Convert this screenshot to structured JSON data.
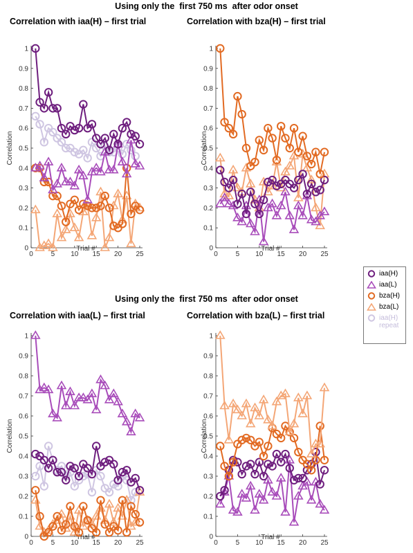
{
  "suptitles": [
    "Using only the  first 750 ms  after odor onset",
    "Using only the  first 750 ms  after odor onset"
  ],
  "colors": {
    "iaa_H": "#6e1e7e",
    "iaa_L": "#a84cba",
    "bza_H": "#e26a22",
    "bza_L": "#f4a676",
    "iaa_H_repeat": "#cfc6e2"
  },
  "legend": {
    "items": [
      {
        "label": "iaa(H)",
        "marker": "circle",
        "color": "#6e1e7e"
      },
      {
        "label": "iaa(L)",
        "marker": "triangle",
        "color": "#a84cba"
      },
      {
        "label": "bza(H)",
        "marker": "circle",
        "color": "#e26a22"
      },
      {
        "label": "bza(L)",
        "marker": "triangle",
        "color": "#f4a676"
      },
      {
        "label": "iaa(H)\nrepeat",
        "marker": "circle",
        "color": "#cfc6e2"
      }
    ]
  },
  "chart_data": [
    {
      "type": "line",
      "title": "Correlation with iaa(H) – first trial",
      "xlabel": "Trial #",
      "ylabel": "Correlation",
      "xlim": [
        0,
        25
      ],
      "ylim": [
        0,
        1
      ],
      "xticks": [
        "0",
        "5",
        "10",
        "15",
        "20",
        "25"
      ],
      "yticks": [
        "0",
        "0.1",
        "0.2",
        "0.3",
        "0.4",
        "0.5",
        "0.6",
        "0.7",
        "0.8",
        "0.9",
        "1"
      ],
      "series": [
        {
          "name": "iaa(H) repeat",
          "values": [
            0.66,
            0.62,
            0.53,
            0.6,
            0.58,
            0.55,
            0.53,
            0.5,
            0.5,
            0.48,
            0.47,
            0.49,
            0.45,
            0.53,
            0.5,
            0.46,
            0.51,
            0.48,
            0.48,
            0.5,
            0.47,
            0.52,
            0.49,
            0.46
          ]
        },
        {
          "name": "bza(L)",
          "values": [
            0.19,
            0.0,
            0.01,
            0.02,
            0.0,
            0.17,
            0.05,
            0.09,
            0.17,
            0.1,
            0.05,
            0.18,
            0.21,
            0.06,
            0.15,
            0.28,
            0.0,
            0.05,
            0.21,
            0.27,
            0.14,
            0.26,
            0.02,
            0.22,
            0.2
          ]
        },
        {
          "name": "bza(H)",
          "values": [
            0.4,
            0.4,
            0.33,
            0.33,
            0.26,
            0.26,
            0.21,
            0.13,
            0.22,
            0.24,
            0.19,
            0.22,
            0.21,
            0.2,
            0.2,
            0.21,
            0.26,
            0.2,
            0.11,
            0.1,
            0.12,
            0.4,
            0.17,
            0.21,
            0.19
          ]
        },
        {
          "name": "iaa(L)",
          "values": [
            0.4,
            0.41,
            0.35,
            0.43,
            0.29,
            0.32,
            0.4,
            0.33,
            0.33,
            0.31,
            0.39,
            0.36,
            0.24,
            0.38,
            0.4,
            0.38,
            0.48,
            0.39,
            0.39,
            0.52,
            0.43,
            0.37,
            0.54,
            0.42,
            0.41
          ]
        },
        {
          "name": "iaa(H)",
          "values": [
            1.0,
            0.73,
            0.7,
            0.78,
            0.7,
            0.7,
            0.6,
            0.57,
            0.61,
            0.59,
            0.6,
            0.72,
            0.6,
            0.62,
            0.55,
            0.52,
            0.55,
            0.49,
            0.57,
            0.52,
            0.6,
            0.63,
            0.57,
            0.56,
            0.52
          ]
        }
      ]
    },
    {
      "type": "line",
      "title": "Correlation with bza(H) – first trial",
      "xlabel": "Trial #",
      "ylabel": "Correlation",
      "xlim": [
        0,
        25
      ],
      "ylim": [
        0,
        1
      ],
      "xticks": [
        "0",
        "5",
        "10",
        "15",
        "20",
        "25"
      ],
      "yticks": [
        "0",
        "0.1",
        "0.2",
        "0.3",
        "0.4",
        "0.5",
        "0.6",
        "0.7",
        "0.8",
        "0.9",
        "1"
      ],
      "series": [
        {
          "name": "bza(L)",
          "values": [
            0.45,
            0.27,
            0.26,
            0.39,
            0.3,
            0.28,
            0.4,
            0.32,
            0.24,
            0.2,
            0.33,
            0.28,
            0.31,
            0.43,
            0.3,
            0.38,
            0.41,
            0.46,
            0.25,
            0.47,
            0.4,
            0.34,
            0.2,
            0.11,
            0.37
          ]
        },
        {
          "name": "iaa(L)",
          "values": [
            0.22,
            0.25,
            0.22,
            0.21,
            0.15,
            0.13,
            0.21,
            0.12,
            0.08,
            0.24,
            0.03,
            0.2,
            0.22,
            0.16,
            0.21,
            0.28,
            0.16,
            0.09,
            0.21,
            0.16,
            0.26,
            0.14,
            0.13,
            0.16,
            0.18
          ]
        },
        {
          "name": "iaa(H)",
          "values": [
            0.39,
            0.33,
            0.3,
            0.34,
            0.22,
            0.27,
            0.17,
            0.28,
            0.22,
            0.17,
            0.24,
            0.33,
            0.34,
            0.31,
            0.32,
            0.34,
            0.32,
            0.3,
            0.34,
            0.37,
            0.27,
            0.32,
            0.28,
            0.29,
            0.34
          ]
        },
        {
          "name": "bza(H)",
          "values": [
            1.0,
            0.63,
            0.6,
            0.57,
            0.76,
            0.67,
            0.5,
            0.41,
            0.43,
            0.54,
            0.49,
            0.6,
            0.55,
            0.44,
            0.61,
            0.55,
            0.5,
            0.6,
            0.48,
            0.56,
            0.46,
            0.42,
            0.48,
            0.37,
            0.48
          ]
        }
      ]
    },
    {
      "type": "line",
      "title": "Correlation with iaa(L) – first trial",
      "xlabel": "Trial #",
      "ylabel": "Correlation",
      "xlim": [
        0,
        25
      ],
      "ylim": [
        0,
        1
      ],
      "xticks": [
        "0",
        "5",
        "10",
        "15",
        "20",
        "25"
      ],
      "yticks": [
        "0",
        "0.1",
        "0.2",
        "0.3",
        "0.4",
        "0.5",
        "0.6",
        "0.7",
        "0.8",
        "0.9",
        "1"
      ],
      "series": [
        {
          "name": "iaa(H) repeat",
          "values": [
            0.3,
            0.35,
            0.25,
            0.45,
            0.38,
            0.33,
            0.35,
            0.3,
            0.32,
            0.25,
            0.28,
            0.3,
            0.31,
            0.22,
            0.33,
            0.3,
            0.24,
            0.22,
            0.26,
            0.25,
            0.3,
            0.28,
            0.18,
            0.22
          ]
        },
        {
          "name": "bza(L)",
          "values": [
            0.18,
            0.05,
            0.02,
            0.03,
            0.06,
            0.08,
            0.11,
            0.04,
            0.1,
            0.02,
            0.13,
            0.05,
            0.08,
            0.06,
            0.1,
            0.14,
            0.08,
            0.16,
            0.07,
            0.14,
            0.1,
            0.18,
            0.05,
            0.07,
            0.22
          ]
        },
        {
          "name": "bza(H)",
          "values": [
            0.23,
            0.1,
            0.0,
            0.02,
            0.05,
            0.1,
            0.03,
            0.06,
            0.15,
            0.05,
            0.02,
            0.15,
            0.08,
            0.04,
            0.02,
            0.18,
            0.06,
            0.02,
            0.05,
            0.03,
            0.18,
            0.02,
            0.15,
            0.11,
            0.07
          ]
        },
        {
          "name": "iaa(H)",
          "values": [
            0.41,
            0.4,
            0.38,
            0.34,
            0.38,
            0.32,
            0.32,
            0.28,
            0.35,
            0.34,
            0.3,
            0.36,
            0.34,
            0.31,
            0.45,
            0.35,
            0.37,
            0.38,
            0.36,
            0.28,
            0.32,
            0.33,
            0.27,
            0.29,
            0.23
          ]
        },
        {
          "name": "iaa(L)",
          "values": [
            1.0,
            0.73,
            0.74,
            0.73,
            0.61,
            0.59,
            0.75,
            0.65,
            0.72,
            0.65,
            0.69,
            0.69,
            0.68,
            0.71,
            0.63,
            0.78,
            0.75,
            0.68,
            0.71,
            0.67,
            0.61,
            0.57,
            0.52,
            0.61,
            0.59
          ]
        }
      ]
    },
    {
      "type": "line",
      "title": "Correlation with bza(L) – first trial",
      "xlabel": "Trial #",
      "ylabel": "Correlation",
      "xlim": [
        0,
        25
      ],
      "ylim": [
        0,
        1
      ],
      "xticks": [
        "0",
        "5",
        "10",
        "15",
        "20",
        "25"
      ],
      "yticks": [
        "0",
        "0.1",
        "0.2",
        "0.3",
        "0.4",
        "0.5",
        "0.6",
        "0.7",
        "0.8",
        "0.9",
        "1"
      ],
      "series": [
        {
          "name": "iaa(L)",
          "values": [
            0.16,
            0.22,
            0.3,
            0.13,
            0.12,
            0.21,
            0.19,
            0.25,
            0.13,
            0.21,
            0.18,
            0.28,
            0.22,
            0.2,
            0.29,
            0.12,
            0.38,
            0.07,
            0.2,
            0.25,
            0.27,
            0.18,
            0.27,
            0.16,
            0.13
          ]
        },
        {
          "name": "iaa(H)",
          "values": [
            0.2,
            0.23,
            0.33,
            0.38,
            0.37,
            0.31,
            0.35,
            0.36,
            0.31,
            0.37,
            0.3,
            0.36,
            0.35,
            0.41,
            0.37,
            0.41,
            0.34,
            0.28,
            0.29,
            0.29,
            0.33,
            0.36,
            0.42,
            0.26,
            0.33
          ]
        },
        {
          "name": "bza(H)",
          "values": [
            0.45,
            0.35,
            0.3,
            0.37,
            0.46,
            0.48,
            0.49,
            0.48,
            0.45,
            0.47,
            0.4,
            0.45,
            0.54,
            0.51,
            0.49,
            0.55,
            0.52,
            0.49,
            0.42,
            0.38,
            0.36,
            0.33,
            0.38,
            0.55,
            0.38
          ]
        },
        {
          "name": "bza(L)",
          "values": [
            1.0,
            0.65,
            0.48,
            0.66,
            0.63,
            0.6,
            0.66,
            0.56,
            0.64,
            0.6,
            0.68,
            0.58,
            0.55,
            0.67,
            0.7,
            0.71,
            0.52,
            0.56,
            0.69,
            0.61,
            0.7,
            0.41,
            0.46,
            0.46,
            0.74
          ]
        }
      ]
    }
  ]
}
